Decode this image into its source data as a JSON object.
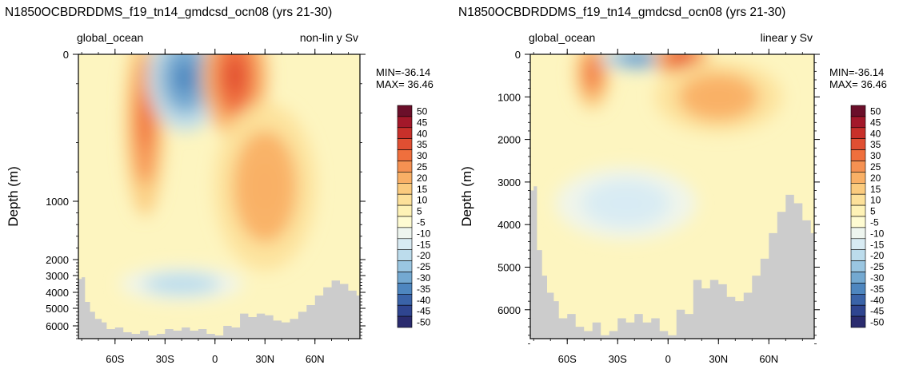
{
  "chart_data": [
    {
      "type": "heatmap",
      "title": "N1850OCBDRDDMS_f19_tn14_gmdcsd_ocn08 (yrs 21-30)",
      "left_label": "global_ocean",
      "right_label": "non-lin y Sv",
      "ylabel": "Depth (m)",
      "y_scale": "non-linear",
      "x_ticks": [
        "60S",
        "30S",
        "0",
        "30N",
        "60N"
      ],
      "y_ticks": [
        "0",
        "1000",
        "2000",
        "3000",
        "4000",
        "5000",
        "6000"
      ],
      "stats": {
        "min": "MIN=-36.14",
        "max": "MAX= 36.46"
      },
      "features": [
        {
          "lat": -42,
          "depth": 450,
          "value": 30
        },
        {
          "lat": -18,
          "depth": 160,
          "value": -36.14
        },
        {
          "lat": 12,
          "depth": 150,
          "value": 36.46
        },
        {
          "lat": 30,
          "depth": 900,
          "value": 20
        },
        {
          "lat": -20,
          "depth": 3500,
          "value": -20
        }
      ]
    },
    {
      "type": "heatmap",
      "title": "N1850OCBDRDDMS_f19_tn14_gmdcsd_ocn08 (yrs 21-30)",
      "left_label": "global_ocean",
      "right_label": "linear y Sv",
      "ylabel": "Depth (m)",
      "y_scale": "linear",
      "x_ticks": [
        "60S",
        "30S",
        "0",
        "30N",
        "60N"
      ],
      "y_ticks": [
        "0",
        "1000",
        "2000",
        "3000",
        "4000",
        "5000",
        "6000"
      ],
      "stats": {
        "min": "MIN=-36.14",
        "max": "MAX= 36.46"
      },
      "features": [
        {
          "lat": -45,
          "depth": 450,
          "value": 30
        },
        {
          "lat": -18,
          "depth": 100,
          "value": -36.14
        },
        {
          "lat": 8,
          "depth": 100,
          "value": 36.46
        },
        {
          "lat": 30,
          "depth": 1000,
          "value": 20
        },
        {
          "lat": -25,
          "depth": 3500,
          "value": -15
        }
      ]
    }
  ],
  "colorbar": {
    "labels": [
      "50",
      "45",
      "40",
      "35",
      "30",
      "25",
      "20",
      "15",
      "10",
      "5",
      "-5",
      "-10",
      "-15",
      "-20",
      "-25",
      "-30",
      "-35",
      "-40",
      "-45",
      "-50"
    ],
    "colors": [
      "#6b0f2a",
      "#a3182a",
      "#c8302a",
      "#e04f32",
      "#ef6f3d",
      "#f59152",
      "#f9b066",
      "#fbcb7e",
      "#fde19a",
      "#fef2b6",
      "#fefbd2",
      "#eef5ef",
      "#d8ebf3",
      "#bcdcec",
      "#9ac6e1",
      "#74a9d1",
      "#4e86bf",
      "#3a63a8",
      "#2f4590",
      "#2a2b6e"
    ]
  },
  "colors": {
    "background_field": "#fdf5c0",
    "land_mask": "#cccccc",
    "frame": "#000000"
  }
}
